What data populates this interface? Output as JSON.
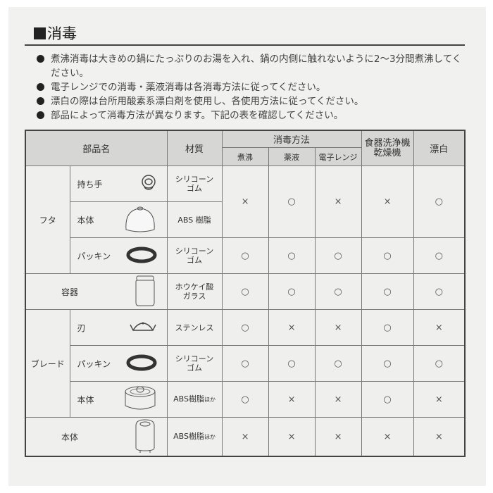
{
  "title": "消毒",
  "bullets": [
    "煮沸消毒は大きめの鍋にたっぷりのお湯を入れ、鍋の内側に触れないように2～3分間煮沸してください。",
    "電子レンジでの消毒・薬液消毒は各消毒方法に従ってください。",
    "漂白の際は台所用酸素系漂白剤を使用し、各使用方法に従ってください。",
    "部品によって消毒方法が異なります。下記の表を確認してください。"
  ],
  "table": {
    "headers": {
      "part": "部品名",
      "material": "材質",
      "method": "消毒方法",
      "boil": "煮沸",
      "chemical": "薬液",
      "microwave": "電子レンジ",
      "dishwasher": "食器洗浄機\n乾燥機",
      "bleach": "漂白"
    },
    "groups": {
      "lid": "フタ",
      "blade": "ブレード"
    },
    "rows": [
      {
        "part": "持ち手",
        "icon": "handle-icon",
        "material": "シリコーン\nゴム"
      },
      {
        "part": "本体",
        "icon": "lid-body-icon",
        "material": "ABS 樹脂"
      },
      {
        "part": "パッキン",
        "icon": "packing-ring-icon",
        "material": "シリコーン\nゴム",
        "marks": [
          "○",
          "○",
          "○",
          "○",
          "○"
        ]
      },
      {
        "part": "容器",
        "icon": "jar-icon",
        "material": "ホウケイ酸\nガラス",
        "marks": [
          "○",
          "○",
          "○",
          "○",
          "○"
        ]
      },
      {
        "part": "刃",
        "icon": "blade-icon",
        "material": "ステンレス",
        "marks": [
          "○",
          "×",
          "×",
          "○",
          "×"
        ]
      },
      {
        "part": "パッキン",
        "icon": "packing-ring-icon",
        "material": "シリコーン\nゴム",
        "marks": [
          "○",
          "○",
          "○",
          "○",
          "○"
        ]
      },
      {
        "part": "本体",
        "icon": "blade-base-icon",
        "material": "ABS樹脂",
        "material_suffix": "ほか",
        "marks": [
          "○",
          "×",
          "×",
          "○",
          "×"
        ]
      },
      {
        "part": "本体",
        "icon": "main-unit-icon",
        "material": "ABS樹脂",
        "material_suffix": "ほか",
        "marks": [
          "×",
          "×",
          "×",
          "×",
          "×"
        ]
      }
    ],
    "lid_marks": [
      "×",
      "○",
      "×",
      "×",
      "○"
    ]
  }
}
